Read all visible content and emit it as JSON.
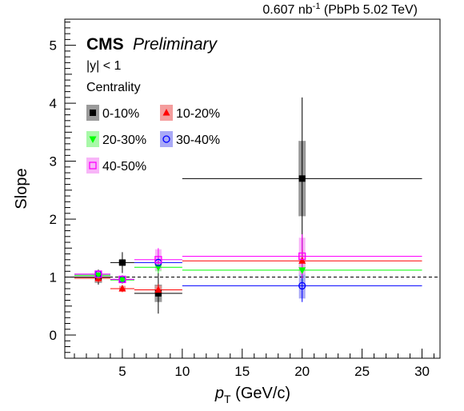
{
  "chart_data": {
    "type": "scatter",
    "xlabel_var": "p",
    "xlabel_sub": "T",
    "xlabel_unit": " (GeV/c)",
    "ylabel": "Slope",
    "xlim": [
      0.2,
      31.5
    ],
    "ylim": [
      -0.4,
      5.45
    ],
    "x_ticks": [
      5,
      10,
      15,
      20,
      25,
      30
    ],
    "y_ticks": [
      0,
      1,
      2,
      3,
      4,
      5
    ],
    "reference_line": 1,
    "lumi_value": "0.607 nb",
    "lumi_exp": "-1",
    "lumi_rest": " (PbPb 5.02 TeV)",
    "experiment": "CMS",
    "status": "Preliminary",
    "rapidity_cut": "|y| < 1",
    "legend_title": "Centrality",
    "legend_placement": "top-left",
    "series": [
      {
        "name": "0-10%",
        "color": "#000000",
        "band": "#888888",
        "marker": "square-filled",
        "points": [
          {
            "x": 3,
            "y": 1.0,
            "xlo": 1,
            "xhi": 4,
            "stat": 0.13,
            "syst": 0.1
          },
          {
            "x": 5,
            "y": 1.25,
            "xlo": 4,
            "xhi": 6,
            "stat": 0.18,
            "syst": 0.05
          },
          {
            "x": 8,
            "y": 0.72,
            "xlo": 6,
            "xhi": 10,
            "stat": 0.35,
            "syst": 0.15
          },
          {
            "x": 20,
            "y": 2.7,
            "xlo": 10,
            "xhi": 30,
            "stat": 1.4,
            "syst": 0.65
          }
        ]
      },
      {
        "name": "10-20%",
        "color": "#ff0000",
        "band": "#f28c8c",
        "marker": "triangle-filled",
        "points": [
          {
            "x": 3,
            "y": 0.98,
            "xlo": 1,
            "xhi": 4,
            "stat": 0.07,
            "syst": 0.06
          },
          {
            "x": 5,
            "y": 0.8,
            "xlo": 4,
            "xhi": 6,
            "stat": 0.06,
            "syst": 0.05
          },
          {
            "x": 8,
            "y": 0.78,
            "xlo": 6,
            "xhi": 10,
            "stat": 0.1,
            "syst": 0.07
          },
          {
            "x": 20,
            "y": 1.28,
            "xlo": 10,
            "xhi": 30,
            "stat": 0.2,
            "syst": 0.12
          }
        ]
      },
      {
        "name": "20-30%",
        "color": "#00ff00",
        "band": "#99f799",
        "marker": "triangle-down-filled",
        "points": [
          {
            "x": 3,
            "y": 1.03,
            "xlo": 1,
            "xhi": 4,
            "stat": 0.06,
            "syst": 0.05
          },
          {
            "x": 5,
            "y": 0.95,
            "xlo": 4,
            "xhi": 6,
            "stat": 0.06,
            "syst": 0.05
          },
          {
            "x": 8,
            "y": 1.17,
            "xlo": 6,
            "xhi": 10,
            "stat": 0.1,
            "syst": 0.07
          },
          {
            "x": 20,
            "y": 1.12,
            "xlo": 10,
            "xhi": 30,
            "stat": 0.2,
            "syst": 0.12
          }
        ]
      },
      {
        "name": "30-40%",
        "color": "#0000ff",
        "band": "#9a9af5",
        "marker": "circle-open",
        "points": [
          {
            "x": 3,
            "y": 1.05,
            "xlo": 1,
            "xhi": 4,
            "stat": 0.06,
            "syst": 0.05
          },
          {
            "x": 5,
            "y": 0.96,
            "xlo": 4,
            "xhi": 6,
            "stat": 0.07,
            "syst": 0.05
          },
          {
            "x": 8,
            "y": 1.25,
            "xlo": 6,
            "xhi": 10,
            "stat": 0.12,
            "syst": 0.08
          },
          {
            "x": 20,
            "y": 0.85,
            "xlo": 10,
            "xhi": 30,
            "stat": 0.28,
            "syst": 0.22
          }
        ]
      },
      {
        "name": "40-50%",
        "color": "#ff00ff",
        "band": "#f7a8f7",
        "marker": "square-open",
        "points": [
          {
            "x": 3,
            "y": 1.05,
            "xlo": 1,
            "xhi": 4,
            "stat": 0.07,
            "syst": 0.06
          },
          {
            "x": 5,
            "y": 0.96,
            "xlo": 4,
            "xhi": 6,
            "stat": 0.07,
            "syst": 0.06
          },
          {
            "x": 8,
            "y": 1.3,
            "xlo": 6,
            "xhi": 10,
            "stat": 0.2,
            "syst": 0.18
          },
          {
            "x": 20,
            "y": 1.36,
            "xlo": 10,
            "xhi": 30,
            "stat": 0.38,
            "syst": 0.32
          }
        ]
      }
    ]
  }
}
